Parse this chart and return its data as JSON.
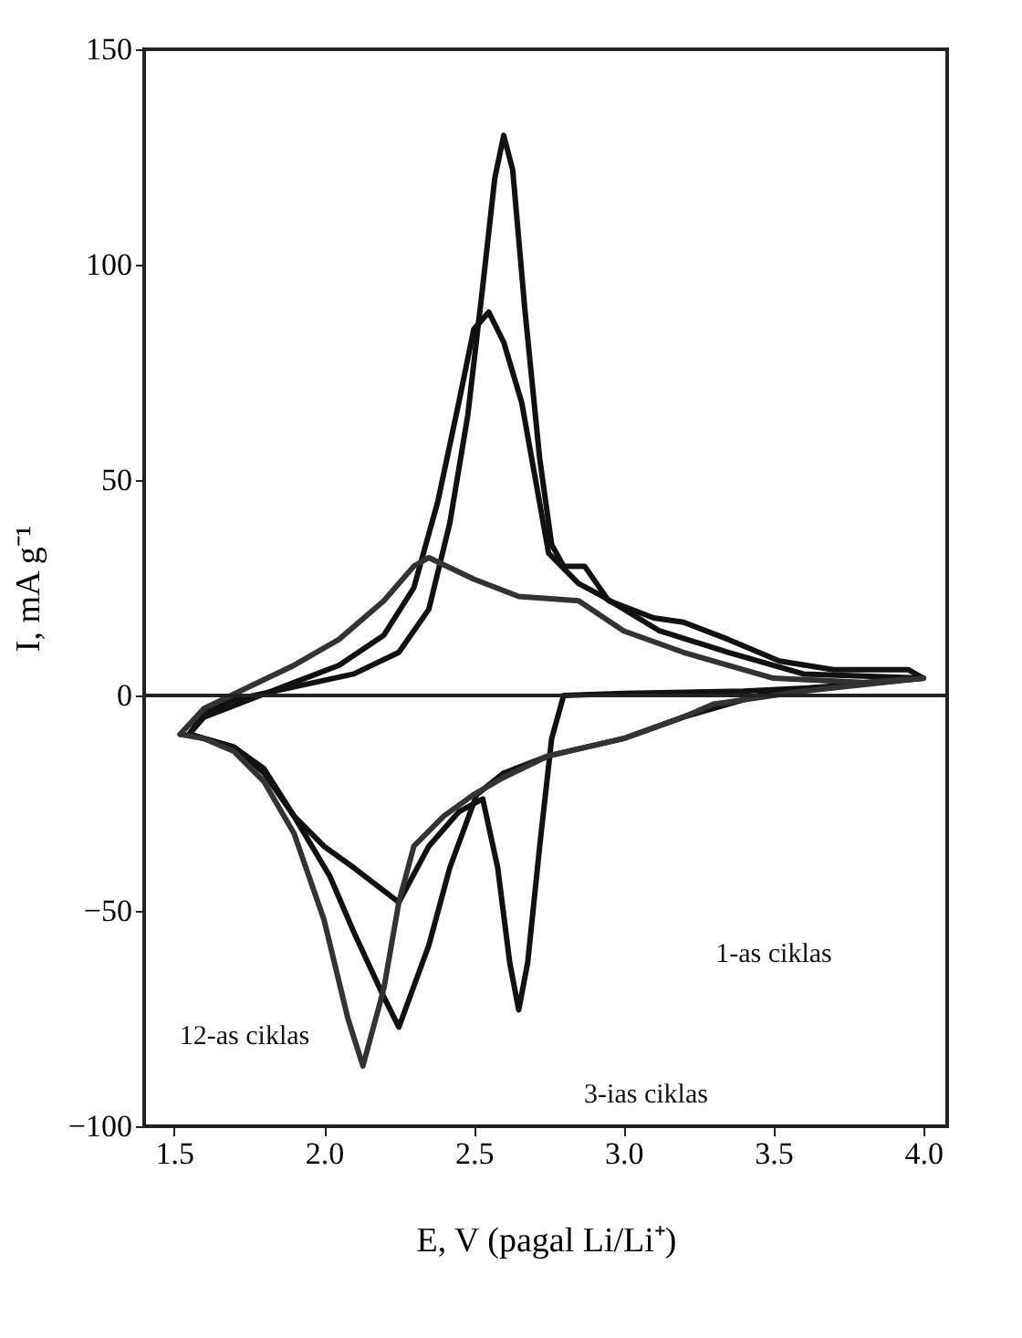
{
  "chart_data": {
    "type": "line",
    "xlabel": "E, V (pagal Li/Li⁺)",
    "ylabel": "I, mA g⁻¹",
    "xlim": [
      1.4,
      4.08
    ],
    "ylim": [
      -100,
      150
    ],
    "xticks": [
      {
        "value": 1.5,
        "label": "1.5"
      },
      {
        "value": 2.0,
        "label": "2.0"
      },
      {
        "value": 2.5,
        "label": "2.5"
      },
      {
        "value": 3.0,
        "label": "3.0"
      },
      {
        "value": 3.5,
        "label": "3.5"
      },
      {
        "value": 4.0,
        "label": "4.0"
      }
    ],
    "yticks": [
      -100,
      -50,
      0,
      50,
      100,
      150
    ],
    "grid": false,
    "marker": "none",
    "line_style": "solid",
    "ref_lines": [
      {
        "axis": "y",
        "value": 0,
        "color": "#222222"
      }
    ],
    "series": [
      {
        "color": "#111111",
        "x": [
          1.55,
          1.6,
          1.7,
          1.8,
          1.9,
          2.0,
          2.1,
          2.25,
          2.35,
          2.45,
          2.53,
          2.58,
          2.62,
          2.65,
          2.68,
          2.72,
          2.76,
          2.8,
          3.0,
          3.4,
          3.7,
          4.0
        ],
        "values": [
          -9,
          -10,
          -12,
          -18,
          -28,
          -35,
          -40,
          -48,
          -35,
          -27,
          -24,
          -40,
          -62,
          -73,
          -62,
          -35,
          -10,
          0,
          0.5,
          1,
          2,
          4
        ]
      },
      {
        "color": "#111111",
        "x": [
          1.55,
          1.6,
          1.7,
          1.9,
          2.1,
          2.25,
          2.35,
          2.42,
          2.48,
          2.53,
          2.57,
          2.6,
          2.63,
          2.67,
          2.72,
          2.76,
          2.8,
          2.87,
          2.95,
          3.1,
          3.2,
          3.35,
          3.52,
          3.7,
          3.95,
          4.0
        ],
        "values": [
          -9,
          -4,
          -1,
          2,
          5,
          10,
          20,
          40,
          65,
          95,
          120,
          130,
          122,
          90,
          55,
          35,
          30,
          30,
          22,
          18,
          17,
          13,
          8,
          6,
          6,
          4
        ]
      },
      {
        "color": "#111111",
        "x": [
          1.55,
          1.7,
          1.8,
          1.9,
          2.02,
          2.1,
          2.2,
          2.25,
          2.35,
          2.42,
          2.51,
          2.6,
          2.75,
          3.0,
          3.2,
          3.5,
          4.0
        ],
        "values": [
          -9,
          -12,
          -17,
          -28,
          -42,
          -55,
          -70,
          -77,
          -58,
          -40,
          -23,
          -18,
          -14,
          -10,
          -5,
          1,
          4
        ]
      },
      {
        "color": "#111111",
        "x": [
          1.55,
          1.6,
          1.75,
          1.9,
          2.05,
          2.2,
          2.3,
          2.38,
          2.45,
          2.5,
          2.55,
          2.6,
          2.66,
          2.75,
          2.85,
          2.93,
          3.12,
          3.35,
          3.6,
          4.0
        ],
        "values": [
          -9,
          -5,
          -1,
          3,
          7,
          14,
          25,
          45,
          68,
          85,
          89,
          82,
          68,
          33,
          26,
          23,
          15,
          10,
          5,
          4
        ]
      },
      {
        "color": "#333333",
        "x": [
          1.52,
          1.6,
          1.7,
          1.8,
          1.9,
          2.0,
          2.08,
          2.13,
          2.2,
          2.25,
          2.3,
          2.4,
          2.5,
          2.6,
          2.75,
          3.0,
          3.2,
          3.3,
          3.6,
          4.0
        ],
        "values": [
          -9,
          -10,
          -13,
          -20,
          -32,
          -52,
          -75,
          -86,
          -68,
          -48,
          -35,
          -28,
          -23,
          -19,
          -14,
          -10,
          -5,
          -2,
          1,
          4
        ]
      },
      {
        "color": "#333333",
        "x": [
          1.52,
          1.6,
          1.75,
          1.9,
          2.05,
          2.2,
          2.3,
          2.35,
          2.5,
          2.65,
          2.85,
          3.0,
          3.2,
          3.5,
          3.8,
          4.0
        ],
        "values": [
          -9,
          -3,
          2,
          7,
          13,
          22,
          30,
          32,
          27,
          23,
          22,
          15,
          10,
          4,
          3,
          4
        ]
      }
    ],
    "annotations": [
      "1-as ciklas",
      "3-ias ciklas",
      "12-as ciklas"
    ]
  }
}
